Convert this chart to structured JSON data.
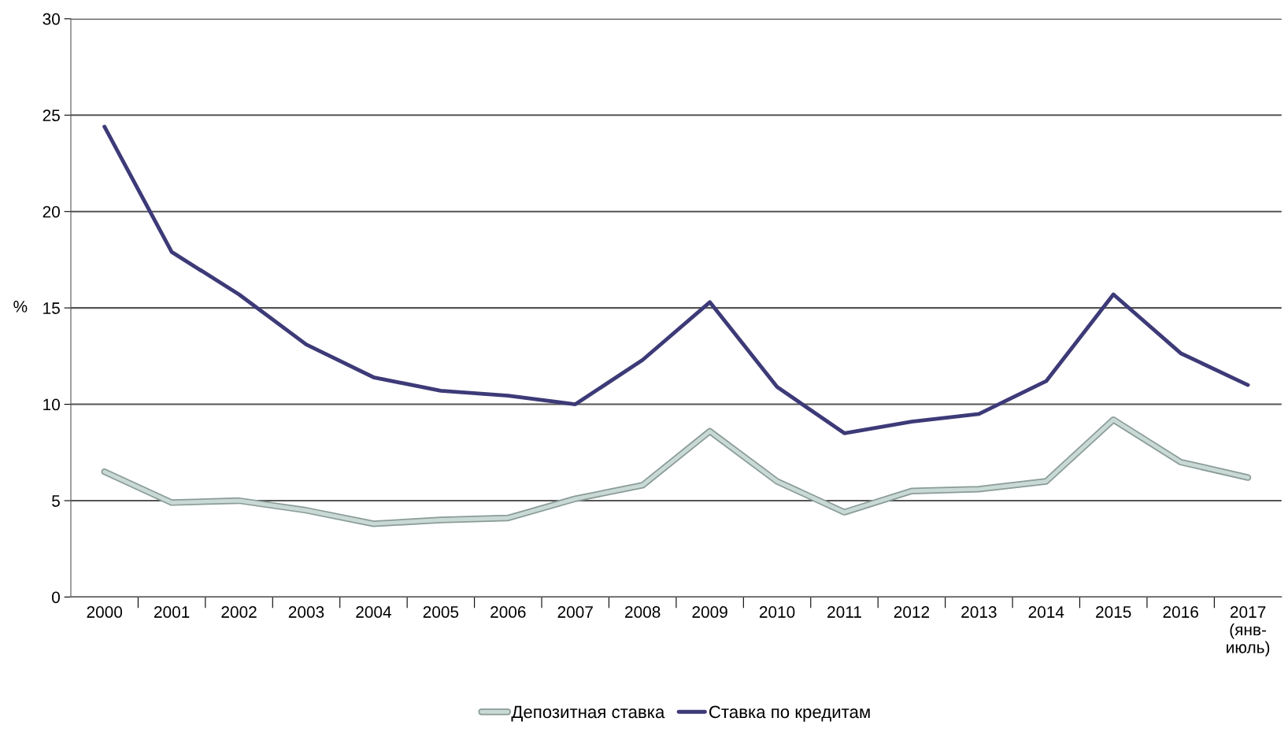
{
  "chart_data": {
    "type": "line",
    "ylabel": "%",
    "categories": [
      "2000",
      "2001",
      "2002",
      "2003",
      "2004",
      "2005",
      "2006",
      "2007",
      "2008",
      "2009",
      "2010",
      "2011",
      "2012",
      "2013",
      "2014",
      "2015",
      "2016",
      "2017\n(янв-\nиюль)"
    ],
    "series": [
      {
        "name": "Депозитная ставка",
        "color": "#c9d9d5",
        "values": [
          6.5,
          4.9,
          5.0,
          4.5,
          3.8,
          4.0,
          4.1,
          5.1,
          5.8,
          8.6,
          6.0,
          4.4,
          5.5,
          5.6,
          6.0,
          9.2,
          7.0,
          6.2
        ]
      },
      {
        "name": "Ставка по кредитам",
        "color": "#3d3a78",
        "values": [
          24.4,
          17.9,
          15.7,
          13.1,
          11.4,
          10.7,
          10.45,
          10.0,
          12.3,
          15.3,
          10.9,
          8.5,
          9.1,
          9.5,
          11.2,
          15.7,
          12.65,
          11.0
        ]
      }
    ],
    "ylim": [
      0,
      30
    ],
    "yticks": [
      0,
      5,
      10,
      15,
      20,
      25,
      30
    ],
    "grid": "y",
    "legend": "bottom",
    "marker": "none",
    "line_style": "solid"
  }
}
